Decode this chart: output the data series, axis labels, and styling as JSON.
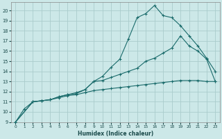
{
  "xlabel": "Humidex (Indice chaleur)",
  "bg_color": "#cce8e8",
  "grid_color": "#aacccc",
  "line_color": "#1a6b6b",
  "xlim": [
    -0.5,
    23.5
  ],
  "ylim": [
    9,
    20.8
  ],
  "xticks": [
    0,
    1,
    2,
    3,
    4,
    5,
    6,
    7,
    8,
    9,
    10,
    11,
    12,
    13,
    14,
    15,
    16,
    17,
    18,
    19,
    20,
    21,
    22,
    23
  ],
  "yticks": [
    9,
    10,
    11,
    12,
    13,
    14,
    15,
    16,
    17,
    18,
    19,
    20
  ],
  "line1_x": [
    0,
    1,
    2,
    3,
    4,
    5,
    6,
    7,
    8,
    9,
    10,
    11,
    12,
    13,
    14,
    15,
    16,
    17,
    18,
    19,
    20,
    21,
    22,
    23
  ],
  "line1_y": [
    9.0,
    10.3,
    11.0,
    11.1,
    11.2,
    11.5,
    11.7,
    11.8,
    12.2,
    13.0,
    13.5,
    14.4,
    15.2,
    17.2,
    19.3,
    19.7,
    20.5,
    19.5,
    19.3,
    18.5,
    17.5,
    16.5,
    15.3,
    14.0
  ],
  "line2_x": [
    0,
    2,
    3,
    4,
    5,
    6,
    7,
    8,
    9,
    10,
    11,
    12,
    13,
    14,
    15,
    16,
    17,
    18,
    19,
    20,
    21,
    22,
    23
  ],
  "line2_y": [
    9.0,
    11.0,
    11.1,
    11.2,
    11.5,
    11.7,
    11.9,
    12.2,
    13.0,
    13.1,
    13.4,
    13.7,
    14.0,
    14.3,
    15.0,
    15.3,
    15.8,
    16.3,
    17.5,
    16.5,
    16.0,
    15.2,
    13.0
  ],
  "line3_x": [
    0,
    2,
    3,
    4,
    5,
    6,
    7,
    8,
    9,
    10,
    11,
    12,
    13,
    14,
    15,
    16,
    17,
    18,
    19,
    20,
    21,
    22,
    23
  ],
  "line3_y": [
    9.0,
    11.0,
    11.1,
    11.2,
    11.4,
    11.6,
    11.7,
    11.9,
    12.1,
    12.2,
    12.3,
    12.4,
    12.5,
    12.6,
    12.7,
    12.8,
    12.9,
    13.0,
    13.1,
    13.1,
    13.1,
    13.0,
    13.0
  ]
}
